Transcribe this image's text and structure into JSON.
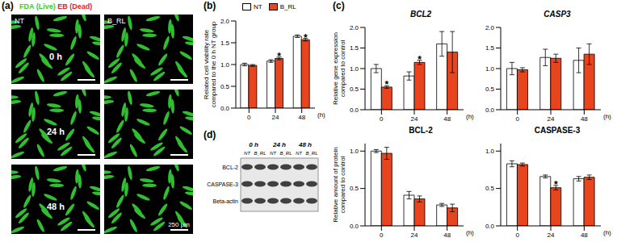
{
  "panels": {
    "a": {
      "label": "(a)",
      "stains": [
        {
          "text": "FDA (Live)",
          "color": "#3cc83c"
        },
        {
          "text": "EB (Dead)",
          "color": "#e02828"
        }
      ],
      "columns": [
        "NT",
        "B_RL"
      ],
      "rows": [
        "0 h",
        "24 h",
        "48 h"
      ],
      "scale_bar": "250 µm"
    },
    "b": {
      "label": "(b)"
    },
    "c": {
      "label": "(c)"
    },
    "d": {
      "label": "(d)",
      "times": [
        "0 h",
        "24 h",
        "48 h"
      ],
      "lanes": [
        "NT",
        "B_RL",
        "NT",
        "B_RL",
        "NT",
        "B_RL"
      ],
      "rows": [
        "BCL-2",
        "CASPASE-3",
        "Beta-actin"
      ]
    }
  },
  "chart_data": [
    {
      "type": "bar",
      "y_label": "Related cell viability rate\ncompared to the 0 h NT group",
      "x_label": "(h)",
      "categories": [
        "0",
        "24",
        "48"
      ],
      "series": [
        {
          "name": "NT",
          "color": "#ffffff",
          "values": [
            1.0,
            1.08,
            1.65
          ],
          "errors": [
            0.03,
            0.03,
            0.03
          ]
        },
        {
          "name": "B_RL",
          "color": "#e8441e",
          "values": [
            0.98,
            1.14,
            1.57
          ],
          "errors": [
            0.02,
            0.03,
            0.03
          ],
          "annotations": [
            null,
            "*",
            "*"
          ]
        }
      ],
      "ylim": [
        0,
        2
      ],
      "yticks": [
        {
          "value": 0,
          "label": "0.0"
        },
        {
          "value": 0.5,
          "label": "0.5"
        },
        {
          "value": 1,
          "label": "1.0"
        },
        {
          "value": 1.5,
          "label": "1.5"
        },
        {
          "value": 2,
          "label": "2.0"
        }
      ],
      "legend": "top"
    },
    {
      "type": "bar",
      "title": "BCL2",
      "y_label": "Relative gene expression\ncompared to control",
      "x_label": "(h)",
      "categories": [
        "0",
        "24",
        "48"
      ],
      "series": [
        {
          "name": "NT",
          "color": "#ffffff",
          "values": [
            1.0,
            0.82,
            1.6
          ],
          "errors": [
            0.1,
            0.1,
            0.3
          ]
        },
        {
          "name": "B_RL",
          "color": "#e8441e",
          "values": [
            0.55,
            1.15,
            1.4
          ],
          "errors": [
            0.03,
            0.05,
            0.5
          ],
          "annotations": [
            "*",
            "*",
            null
          ]
        }
      ],
      "ylim": [
        0,
        2
      ],
      "yticks": [
        {
          "value": 0,
          "label": "0.0"
        },
        {
          "value": 0.5,
          "label": "0.5"
        },
        {
          "value": 1,
          "label": "1.0"
        },
        {
          "value": 1.5,
          "label": "1.5"
        },
        {
          "value": 2,
          "label": "2.0"
        }
      ]
    },
    {
      "type": "bar",
      "title": "CASP3",
      "x_label": "(h)",
      "categories": [
        "0",
        "24",
        "48"
      ],
      "series": [
        {
          "name": "NT",
          "color": "#ffffff",
          "values": [
            1.0,
            1.27,
            1.2
          ],
          "errors": [
            0.15,
            0.2,
            0.3
          ]
        },
        {
          "name": "B_RL",
          "color": "#e8441e",
          "values": [
            0.97,
            1.25,
            1.35
          ],
          "errors": [
            0.05,
            0.1,
            0.25
          ]
        }
      ],
      "ylim": [
        0,
        2
      ],
      "yticks": [
        {
          "value": 0,
          "label": "0.0"
        },
        {
          "value": 0.5,
          "label": "0.5"
        },
        {
          "value": 1,
          "label": "1.0"
        },
        {
          "value": 1.5,
          "label": "1.5"
        },
        {
          "value": 2,
          "label": "2.0"
        }
      ]
    },
    {
      "type": "bar",
      "title": "BCL-2",
      "y_label": "Relative amount of protein\ncompared to control",
      "x_label": "(h)",
      "categories": [
        "0",
        "24",
        "48"
      ],
      "series": [
        {
          "name": "NT",
          "color": "#ffffff",
          "values": [
            1.0,
            0.41,
            0.28
          ],
          "errors": [
            0.02,
            0.05,
            0.02
          ]
        },
        {
          "name": "B_RL",
          "color": "#e8441e",
          "values": [
            0.97,
            0.36,
            0.24
          ],
          "errors": [
            0.08,
            0.04,
            0.05
          ]
        }
      ],
      "ylim": [
        0,
        1.1
      ],
      "yticks": [
        {
          "value": 0,
          "label": "0.0"
        },
        {
          "value": 0.5,
          "label": "0.5"
        },
        {
          "value": 1,
          "label": "1.0"
        }
      ]
    },
    {
      "type": "bar",
      "title": "CASPASE-3",
      "x_label": "(h)",
      "categories": [
        "0",
        "24",
        "48"
      ],
      "series": [
        {
          "name": "NT",
          "color": "#ffffff",
          "values": [
            0.83,
            0.66,
            0.63
          ],
          "errors": [
            0.04,
            0.02,
            0.03
          ]
        },
        {
          "name": "B_RL",
          "color": "#e8441e",
          "values": [
            0.82,
            0.51,
            0.65
          ],
          "errors": [
            0.02,
            0.03,
            0.03
          ],
          "annotations": [
            null,
            "*",
            null
          ]
        }
      ],
      "ylim": [
        0,
        1.1
      ],
      "yticks": [
        {
          "value": 0,
          "label": "0.0"
        },
        {
          "value": 0.5,
          "label": "0.5"
        },
        {
          "value": 1,
          "label": "1.0"
        }
      ]
    }
  ]
}
